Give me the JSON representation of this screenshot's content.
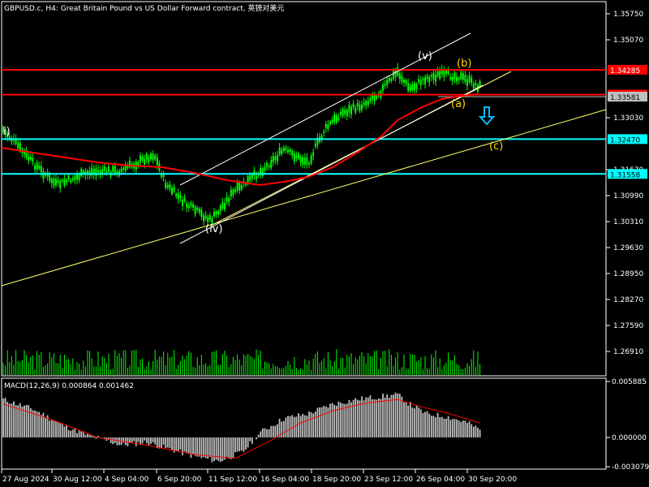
{
  "header": {
    "title": "GBPUSD.c, H4:  Great Britain Pound vs US Dollar Forward contract, 英镑对美元"
  },
  "price_axis": {
    "ticks": [
      "1.35750",
      "1.35070",
      "1.34285",
      "1.33634",
      "1.33030",
      "1.32470",
      "1.31670",
      "1.31558",
      "1.30990",
      "1.30310",
      "1.29630",
      "1.28950",
      "1.28270",
      "1.27590",
      "1.26910"
    ],
    "labels": [
      {
        "text": "1.34285",
        "bg": "#ff0000",
        "fg": "#ffffff"
      },
      {
        "text": "1.33634",
        "bg": "#ff0000",
        "fg": "#ffffff"
      },
      {
        "text": "1.33581",
        "bg": "#c0c0c0",
        "fg": "#000000"
      },
      {
        "text": "1.32470",
        "bg": "#00ffff",
        "fg": "#000000"
      },
      {
        "text": "1.31558",
        "bg": "#00ffff",
        "fg": "#000000"
      }
    ]
  },
  "macd": {
    "title": "MACD(12,26,9) 0.000864 0.001462",
    "ticks": [
      "0.005885",
      "0.000000",
      "-0.003079"
    ]
  },
  "time_axis": {
    "ticks": [
      "27 Aug 2024",
      "30 Aug 12:00",
      "4 Sep 04:00",
      "6 Sep 20:00",
      "11 Sep 12:00",
      "16 Sep 04:00",
      "18 Sep 20:00",
      "23 Sep 12:00",
      "26 Sep 04:00",
      "30 Sep 20:00"
    ]
  },
  "annotations": {
    "wave_i": "i)",
    "wave_iv": "(iv)",
    "wave_v": "(v)",
    "wave_a": "(a)",
    "wave_b": "(b)",
    "wave_c": "(c)"
  },
  "colors": {
    "background": "#000000",
    "candle": "#00ff00",
    "moving_average": "#ff0000",
    "resistance": "#ff0000",
    "support": "#00ffff",
    "trendline": "#ffff66",
    "channel": "#ffffff",
    "macd_histogram": "#c0c0c0",
    "macd_signal": "#ff0000",
    "arrow": "#00bfff",
    "wave_label_yellow": "#ffd700"
  },
  "icons": {
    "forecast_arrow": "down-arrow-icon"
  }
}
